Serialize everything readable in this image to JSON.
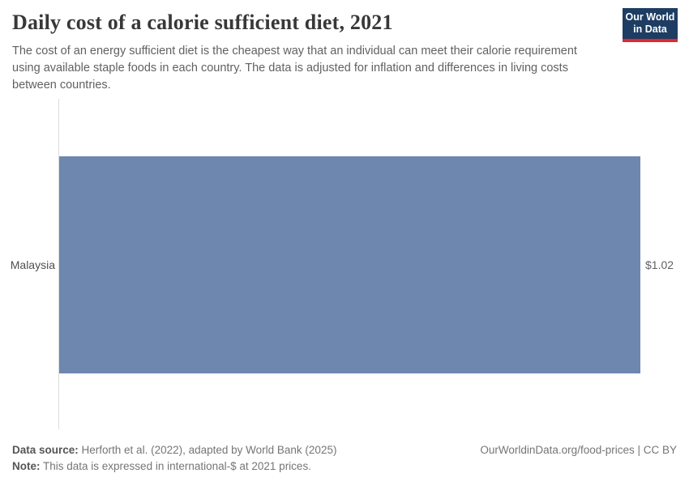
{
  "header": {
    "title": "Daily cost of a calorie sufficient diet, 2021",
    "subtitle": "The cost of an energy sufficient diet is the cheapest way that an individual can meet their calorie requirement using available staple foods in each country. The data is adjusted for inflation and differences in living costs between countries.",
    "logo": {
      "line1": "Our World",
      "line2": "in Data",
      "bg_color": "#1d3d63",
      "accent_color": "#e0282e"
    }
  },
  "chart_data": {
    "type": "bar",
    "orientation": "horizontal",
    "title": "Daily cost of a calorie sufficient diet, 2021",
    "categories": [
      "Malaysia"
    ],
    "values": [
      1.02
    ],
    "value_labels": [
      "$1.02"
    ],
    "unit": "international-$ per day",
    "xlim": [
      0,
      1.02
    ],
    "grid": false,
    "legend": false,
    "bar_color": "#6e87ae",
    "axis_line_color": "#dedede"
  },
  "footer": {
    "data_source_label": "Data source:",
    "data_source_text": " Herforth et al. (2022), adapted by World Bank (2025)",
    "note_label": "Note:",
    "note_text": " This data is expressed in international-$ at 2021 prices.",
    "link_text": "OurWorldinData.org/food-prices | CC BY"
  }
}
